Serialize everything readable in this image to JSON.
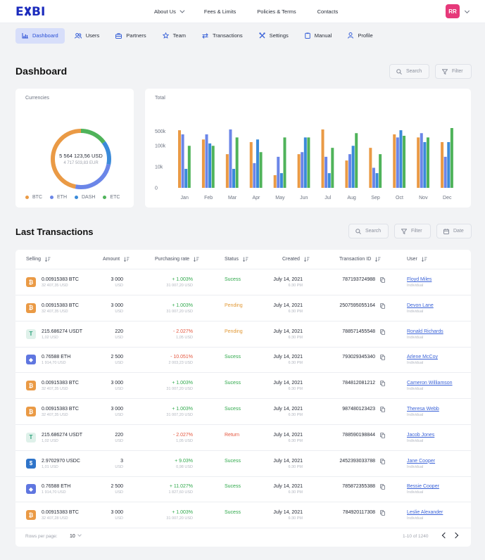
{
  "brand": {
    "logo_text": "EXBI"
  },
  "topnav": {
    "items": [
      {
        "label": "About Us",
        "has_dropdown": true
      },
      {
        "label": "Fees & Limits"
      },
      {
        "label": "Policies & Terms"
      },
      {
        "label": "Contacts"
      }
    ],
    "avatar_initials": "RR"
  },
  "subnav": {
    "items": [
      {
        "label": "Dashboard",
        "icon": "bar-chart-icon",
        "active": true
      },
      {
        "label": "Users",
        "icon": "users-icon"
      },
      {
        "label": "Partners",
        "icon": "briefcase-icon"
      },
      {
        "label": "Team",
        "icon": "star-icon"
      },
      {
        "label": "Transactions",
        "icon": "swap-icon"
      },
      {
        "label": "Settings",
        "icon": "tools-icon"
      },
      {
        "label": "Manual",
        "icon": "clipboard-icon"
      },
      {
        "label": "Profile",
        "icon": "person-icon"
      }
    ]
  },
  "dashboard": {
    "title": "Dashboard",
    "search_label": "Search",
    "filter_label": "Filter"
  },
  "currencies": {
    "title": "Currencies",
    "total": "5 564 123,56 USD",
    "subtotal": "4 717 503,83 EUR",
    "legend": [
      {
        "name": "BTC",
        "color": "#ea9a45"
      },
      {
        "name": "ETH",
        "color": "#6b86e8"
      },
      {
        "name": "DASH",
        "color": "#3a8ad9"
      },
      {
        "name": "ETC",
        "color": "#4fb35a"
      }
    ],
    "share": [
      0.47,
      0.25,
      0.13,
      0.15
    ]
  },
  "chart_data": {
    "type": "bar",
    "title": "Total",
    "categories": [
      "Jan",
      "Feb",
      "Mar",
      "Apr",
      "May",
      "Jun",
      "Jul",
      "Aug",
      "Sep",
      "Oct",
      "Nov",
      "Dec"
    ],
    "yticks": [
      "500k",
      "100k",
      "10k",
      "0"
    ],
    "y_scale": "log",
    "series": [
      {
        "color": "#ea9a45",
        "values": [
          550000,
          200000,
          40000,
          150000,
          4000,
          40000,
          600000,
          20000,
          80000,
          350000,
          250000,
          150000
        ]
      },
      {
        "color": "#6b86e8",
        "values": [
          350000,
          350000,
          600000,
          15000,
          30000,
          50000,
          30000,
          40000,
          9000,
          250000,
          400000,
          30000
        ]
      },
      {
        "color": "#3a8ad9",
        "values": [
          8000,
          130000,
          8000,
          200000,
          5000,
          250000,
          5000,
          100000,
          5000,
          550000,
          150000,
          150000
        ]
      },
      {
        "color": "#4fb35a",
        "values": [
          100000,
          100000,
          250000,
          50000,
          250000,
          250000,
          80000,
          400000,
          40000,
          300000,
          250000,
          700000
        ]
      }
    ]
  },
  "transactions": {
    "title": "Last Transactions",
    "search_label": "Search",
    "filter_label": "Filter",
    "date_label": "Date",
    "columns": {
      "selling": "Selling",
      "amount": "Amount",
      "rate": "Purchasing rate",
      "status": "Status",
      "created": "Created",
      "txid": "Transaction ID",
      "user": "User"
    },
    "rows": [
      {
        "coin": "BTC",
        "coin_color": "#ea9a45",
        "glyph": "₿",
        "sell": "0.00915383 BTC",
        "sell_sub": "32 407,35 USD",
        "amount": "3 000",
        "amount_sub": "USD",
        "rate": "+ 1.003%",
        "rate_sign": "pos",
        "rate_sub": "31 007,20 USD",
        "status": "Sucess",
        "status_class": "Success",
        "date": "July 14, 2021",
        "time": "6:30 PM",
        "txid": "787193724988",
        "user": "Floyd Miles",
        "user_sub": "Individual"
      },
      {
        "coin": "BTC",
        "coin_color": "#ea9a45",
        "glyph": "₿",
        "sell": "0.00915383 BTC",
        "sell_sub": "32 407,35 USD",
        "amount": "3 000",
        "amount_sub": "USD",
        "rate": "+ 1.003%",
        "rate_sign": "pos",
        "rate_sub": "31 007,20 USD",
        "status": "Pending",
        "status_class": "Pending",
        "date": "July 14, 2021",
        "time": "6:30 PM",
        "txid": "2507595055164",
        "user": "Devon Lane",
        "user_sub": "Individual"
      },
      {
        "coin": "USDT",
        "coin_color": "#dff1ea",
        "glyph": "T",
        "sell": "215.686274 USDT",
        "sell_sub": "1,02 USD",
        "amount": "220",
        "amount_sub": "USD",
        "rate": "- 2.027%",
        "rate_sign": "neg",
        "rate_sub": "1,05 USD",
        "status": "Pending",
        "status_class": "Pending",
        "date": "July 14, 2021",
        "time": "6:30 PM",
        "txid": "788571455548",
        "user": "Ronald Richards",
        "user_sub": "Individual"
      },
      {
        "coin": "ETH",
        "coin_color": "#5f76e0",
        "glyph": "◆",
        "sell": "0.76588 ETH",
        "sell_sub": "1 914,70 USD",
        "amount": "2 500",
        "amount_sub": "USD",
        "rate": "- 10.051%",
        "rate_sign": "neg",
        "rate_sub": "2 003,23 USD",
        "status": "Sucess",
        "status_class": "Success",
        "date": "July 14, 2021",
        "time": "6:30 PM",
        "txid": "793029345340",
        "user": "Arlene McCoy",
        "user_sub": "Individual"
      },
      {
        "coin": "BTC",
        "coin_color": "#ea9a45",
        "glyph": "₿",
        "sell": "0.00915383 BTC",
        "sell_sub": "32 407,35 USD",
        "amount": "3 000",
        "amount_sub": "USD",
        "rate": "+ 1.003%",
        "rate_sign": "pos",
        "rate_sub": "31 007,20 USD",
        "status": "Sucess",
        "status_class": "Success",
        "date": "July 14, 2021",
        "time": "6:30 PM",
        "txid": "784812081212",
        "user": "Cameron Williamson",
        "user_sub": "Individual"
      },
      {
        "coin": "BTC",
        "coin_color": "#ea9a45",
        "glyph": "₿",
        "sell": "0.00915383 BTC",
        "sell_sub": "32 407,35 USD",
        "amount": "3 000",
        "amount_sub": "USD",
        "rate": "+ 1.003%",
        "rate_sign": "pos",
        "rate_sub": "31 007,20 USD",
        "status": "Sucess",
        "status_class": "Success",
        "date": "July 14, 2021",
        "time": "6:30 PM",
        "txid": "987480123423",
        "user": "Theresa Webb",
        "user_sub": "Individual"
      },
      {
        "coin": "USDT",
        "coin_color": "#dff1ea",
        "glyph": "T",
        "sell": "215.686274 USDT",
        "sell_sub": "1,02 USD",
        "amount": "220",
        "amount_sub": "USD",
        "rate": "- 2.027%",
        "rate_sign": "neg",
        "rate_sub": "1,05 USD",
        "status": "Return",
        "status_class": "Return",
        "date": "July 14, 2021",
        "time": "6:30 PM",
        "txid": "788590198844",
        "user": "Jacob Jones",
        "user_sub": "Individual"
      },
      {
        "coin": "USDC",
        "coin_color": "#2f74c9",
        "glyph": "$",
        "sell": "2.9702970 USDC",
        "sell_sub": "1,01 USD",
        "amount": "3",
        "amount_sub": "USD",
        "rate": "+ 9.03%",
        "rate_sign": "pos",
        "rate_sub": "0,98 USD",
        "status": "Sucess",
        "status_class": "Success",
        "date": "July 14, 2021",
        "time": "6:30 PM",
        "txid": "2452393033788",
        "user": "Jane Cooper",
        "user_sub": "Individual"
      },
      {
        "coin": "ETH",
        "coin_color": "#5f76e0",
        "glyph": "◆",
        "sell": "0.76588 ETH",
        "sell_sub": "1 914,70 USD",
        "amount": "2 500",
        "amount_sub": "USD",
        "rate": "+ 11.027%",
        "rate_sign": "pos",
        "rate_sub": "1 827,60 USD",
        "status": "Sucess",
        "status_class": "Success",
        "date": "July 14, 2021",
        "time": "6:30 PM",
        "txid": "785872355388",
        "user": "Bessie Cooper",
        "user_sub": "Individual"
      },
      {
        "coin": "BTC",
        "coin_color": "#ea9a45",
        "glyph": "₿",
        "sell": "0.00915383 BTC",
        "sell_sub": "32 407,28 USD",
        "amount": "3 000",
        "amount_sub": "USD",
        "rate": "+ 1.003%",
        "rate_sign": "pos",
        "rate_sub": "31 007,20 USD",
        "status": "Sucess",
        "status_class": "Success",
        "date": "July 14, 2021",
        "time": "6:30 PM",
        "txid": "784920117308",
        "user": "Leslie Alexander",
        "user_sub": "Individual"
      }
    ],
    "footer": {
      "rows_label": "Rows per page:",
      "rows_value": "10",
      "range": "1-10 of 1240"
    }
  }
}
